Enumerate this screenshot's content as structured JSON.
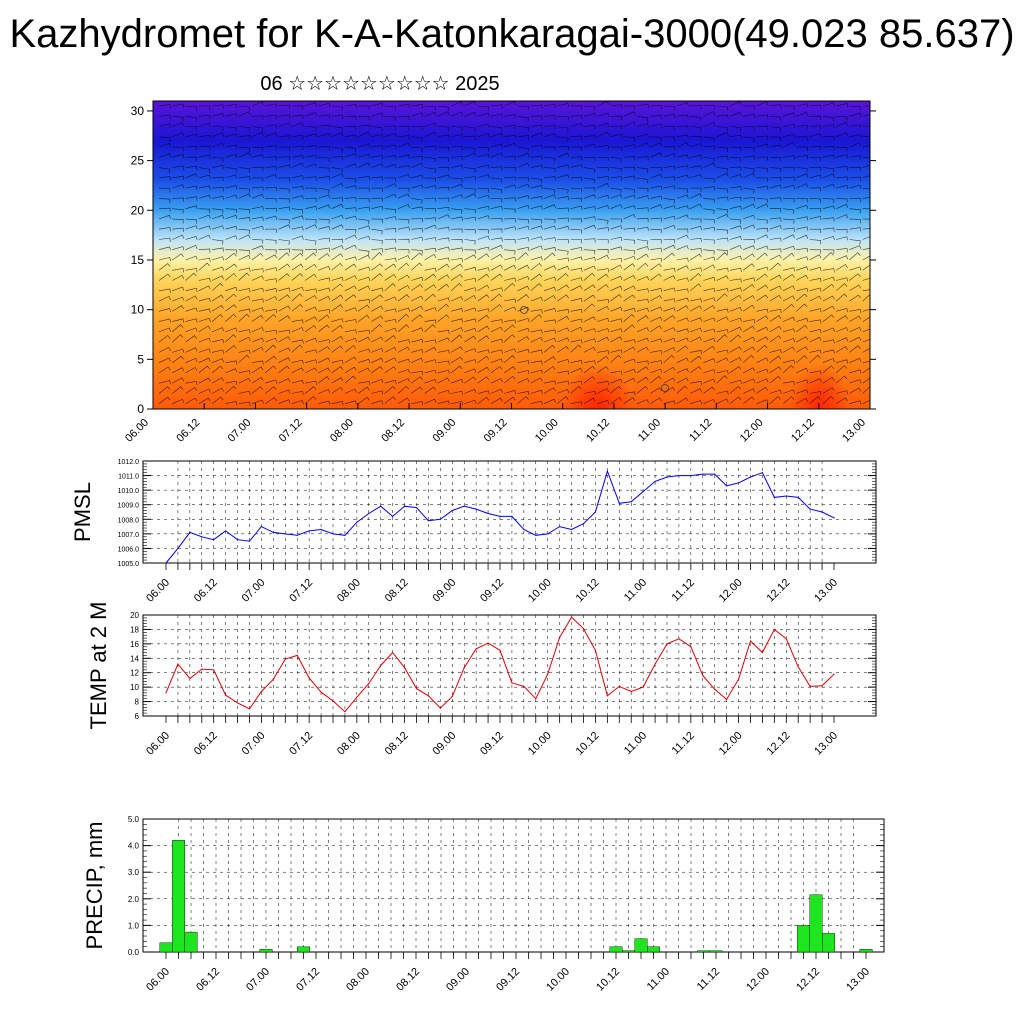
{
  "header": {
    "title": "Kazhydromet for K-A-Katonkaragai-3000(49.023 85.637)",
    "subtitle": "06 ☆☆☆☆☆☆☆☆☆ 2025"
  },
  "chart_data": [
    {
      "id": "cross-section",
      "type": "heatmap",
      "description_free": true,
      "x_tick_labels": [
        "06.00",
        "06.12",
        "07.00",
        "07.12",
        "08.00",
        "08.12",
        "09.00",
        "09.12",
        "10.00",
        "10.12",
        "11.00",
        "11.12",
        "12.00",
        "12.12",
        "13.00"
      ],
      "y_ticks": [
        0,
        5,
        10,
        15,
        20,
        25,
        30
      ],
      "ylim": [
        0,
        31
      ],
      "color_levels": [
        {
          "y": 0,
          "color": "#ff5a0a"
        },
        {
          "y": 4,
          "color": "#ff7d12"
        },
        {
          "y": 9,
          "color": "#ffa428"
        },
        {
          "y": 13,
          "color": "#ffd55a"
        },
        {
          "y": 15,
          "color": "#fff2a8"
        },
        {
          "y": 17,
          "color": "#bfe4f8"
        },
        {
          "y": 20,
          "color": "#3aa0f0"
        },
        {
          "y": 23,
          "color": "#1b50e8"
        },
        {
          "y": 27,
          "color": "#1a16d4"
        },
        {
          "y": 31,
          "color": "#5a14d8"
        }
      ]
    },
    {
      "id": "pmsl",
      "type": "line",
      "ylabel": "PMSL",
      "ylim": [
        1005.0,
        1012.0
      ],
      "y_ticks": [
        "1005.0",
        "1006.0",
        "1007.0",
        "1008.0",
        "1009.0",
        "1010.0",
        "1011.0",
        "1012.0"
      ],
      "x_tick_labels": [
        "06.00",
        "06.12",
        "07.00",
        "07.12",
        "08.00",
        "08.12",
        "09.00",
        "09.12",
        "10.00",
        "10.12",
        "11.00",
        "11.12",
        "12.00",
        "12.12",
        "13.00"
      ],
      "color": "#0000ff",
      "series": [
        {
          "values": [
            1005.0,
            1006.0,
            1007.1,
            1006.8,
            1006.6,
            1007.2,
            1006.6,
            1006.5,
            1007.5,
            1007.1,
            1007.0,
            1006.9,
            1007.2,
            1007.3,
            1007.0,
            1006.9,
            1007.8,
            1008.4,
            1008.9,
            1008.2,
            1008.9,
            1008.8,
            1007.9,
            1008.0,
            1008.6,
            1008.9,
            1008.7,
            1008.4,
            1008.2,
            1008.2,
            1007.3,
            1006.9,
            1007.0,
            1007.5,
            1007.3,
            1007.7,
            1008.5,
            1011.3,
            1009.1,
            1009.2,
            1009.9,
            1010.6,
            1010.9,
            1011.0,
            1011.0,
            1011.1,
            1011.1,
            1010.3,
            1010.5,
            1010.9,
            1011.2,
            1009.5,
            1009.6,
            1009.5,
            1008.7,
            1008.5,
            1008.1
          ]
        }
      ]
    },
    {
      "id": "temp2m",
      "type": "line",
      "ylabel": "TEMP at 2 M",
      "ylim": [
        6,
        20
      ],
      "y_ticks": [
        "6",
        "8",
        "10",
        "12",
        "14",
        "16",
        "18",
        "20"
      ],
      "x_tick_labels": [
        "06.00",
        "06.12",
        "07.00",
        "07.12",
        "08.00",
        "08.12",
        "09.00",
        "09.12",
        "10.00",
        "10.12",
        "11.00",
        "11.12",
        "12.00",
        "12.12",
        "13.00"
      ],
      "color": "#e00000",
      "series": [
        {
          "values": [
            9.2,
            13.2,
            11.2,
            12.5,
            12.4,
            8.9,
            7.8,
            7.0,
            9.4,
            11.1,
            13.9,
            14.4,
            11.3,
            9.3,
            8.1,
            6.6,
            8.6,
            10.5,
            13.0,
            14.8,
            12.7,
            9.8,
            8.8,
            7.1,
            8.7,
            12.7,
            15.3,
            16.1,
            15.1,
            10.6,
            10.1,
            8.4,
            11.8,
            16.9,
            19.7,
            18.1,
            15.1,
            8.8,
            10.1,
            9.4,
            10.0,
            13.2,
            16.0,
            16.7,
            15.6,
            11.6,
            9.7,
            8.3,
            11.1,
            16.4,
            14.8,
            18.0,
            16.7,
            12.8,
            10.1,
            10.2,
            11.8
          ]
        }
      ]
    },
    {
      "id": "precip",
      "type": "bar",
      "ylabel": "PRECIP, mm",
      "ylim": [
        0,
        5.0
      ],
      "y_ticks": [
        "0.0",
        "1.0",
        "2.0",
        "3.0",
        "4.0",
        "5.0"
      ],
      "x_tick_labels": [
        "06.00",
        "06.12",
        "07.00",
        "07.12",
        "08.00",
        "08.12",
        "09.00",
        "09.12",
        "10.00",
        "10.12",
        "11.00",
        "11.12",
        "12.00",
        "12.12",
        "13.00"
      ],
      "color": "#1ee61e",
      "series": [
        {
          "values": [
            0.35,
            4.2,
            0.75,
            0,
            0,
            0,
            0,
            0,
            0.1,
            0,
            0,
            0.2,
            0,
            0,
            0,
            0,
            0,
            0,
            0,
            0,
            0,
            0,
            0,
            0,
            0,
            0,
            0,
            0,
            0,
            0,
            0,
            0,
            0,
            0,
            0,
            0,
            0.2,
            0.05,
            0.5,
            0.2,
            0,
            0,
            0,
            0.05,
            0.05,
            0,
            0,
            0,
            0,
            0,
            0,
            1.0,
            2.15,
            0.7,
            0,
            0,
            0.1
          ]
        }
      ]
    }
  ]
}
